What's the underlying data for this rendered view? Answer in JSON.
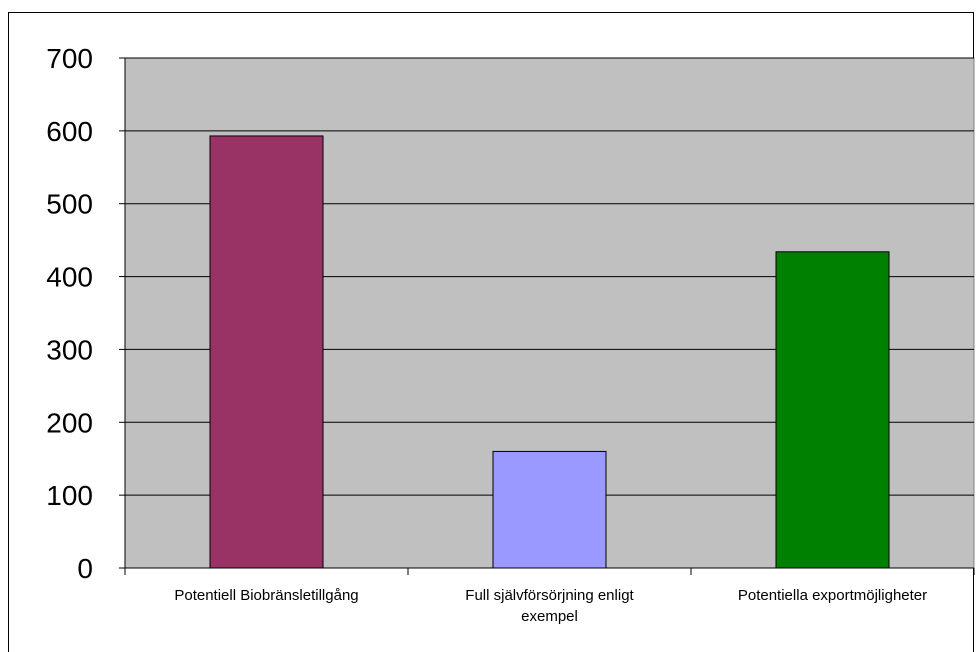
{
  "chart_data": {
    "type": "bar",
    "categories": [
      [
        "Potentiell Biobränsletillgång"
      ],
      [
        "Full självförsörjning enligt",
        "exempel"
      ],
      [
        "Potentiella exportmöjligheter"
      ]
    ],
    "values": [
      593,
      160,
      434
    ],
    "bar_colors": [
      "#993366",
      "#9999ff",
      "#008000"
    ],
    "plot_background": "#c0c0c0",
    "ylim": [
      0,
      700
    ],
    "yticks": [
      0,
      100,
      200,
      300,
      400,
      500,
      600,
      700
    ],
    "grid": true,
    "legend": false,
    "title": "",
    "xlabel": "",
    "ylabel": ""
  }
}
